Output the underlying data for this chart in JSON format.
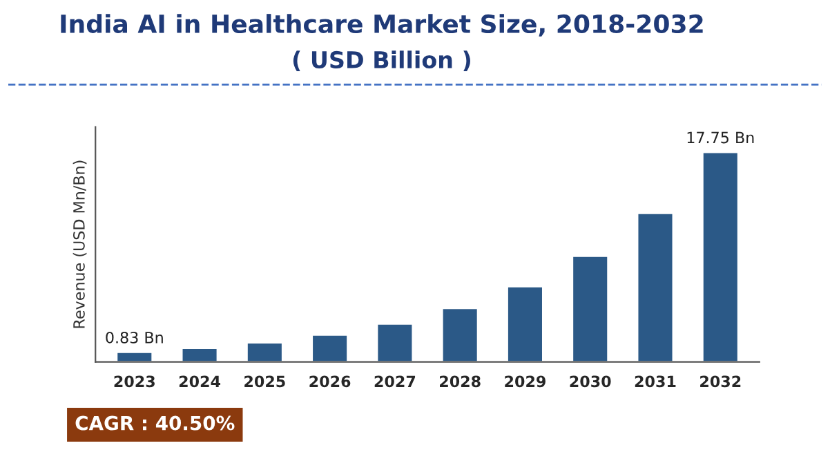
{
  "chart_data": {
    "type": "bar",
    "title": "India AI in Healthcare Market Size, 2018-2032",
    "subtitle": "( USD Billion )",
    "ylabel": "Revenue (USD Mn/Bn)",
    "categories": [
      "2023",
      "2024",
      "2025",
      "2026",
      "2027",
      "2028",
      "2029",
      "2030",
      "2031",
      "2032"
    ],
    "values": [
      0.83,
      1.17,
      1.64,
      2.3,
      3.23,
      4.54,
      6.38,
      8.96,
      12.59,
      17.75
    ],
    "value_labels": [
      "0.83 Bn",
      null,
      null,
      null,
      null,
      null,
      null,
      null,
      null,
      "17.75 Bn"
    ],
    "color": "#2b5987",
    "tick_labels": "x",
    "grid": false,
    "annotations": [
      "CAGR : 40.50%"
    ]
  }
}
